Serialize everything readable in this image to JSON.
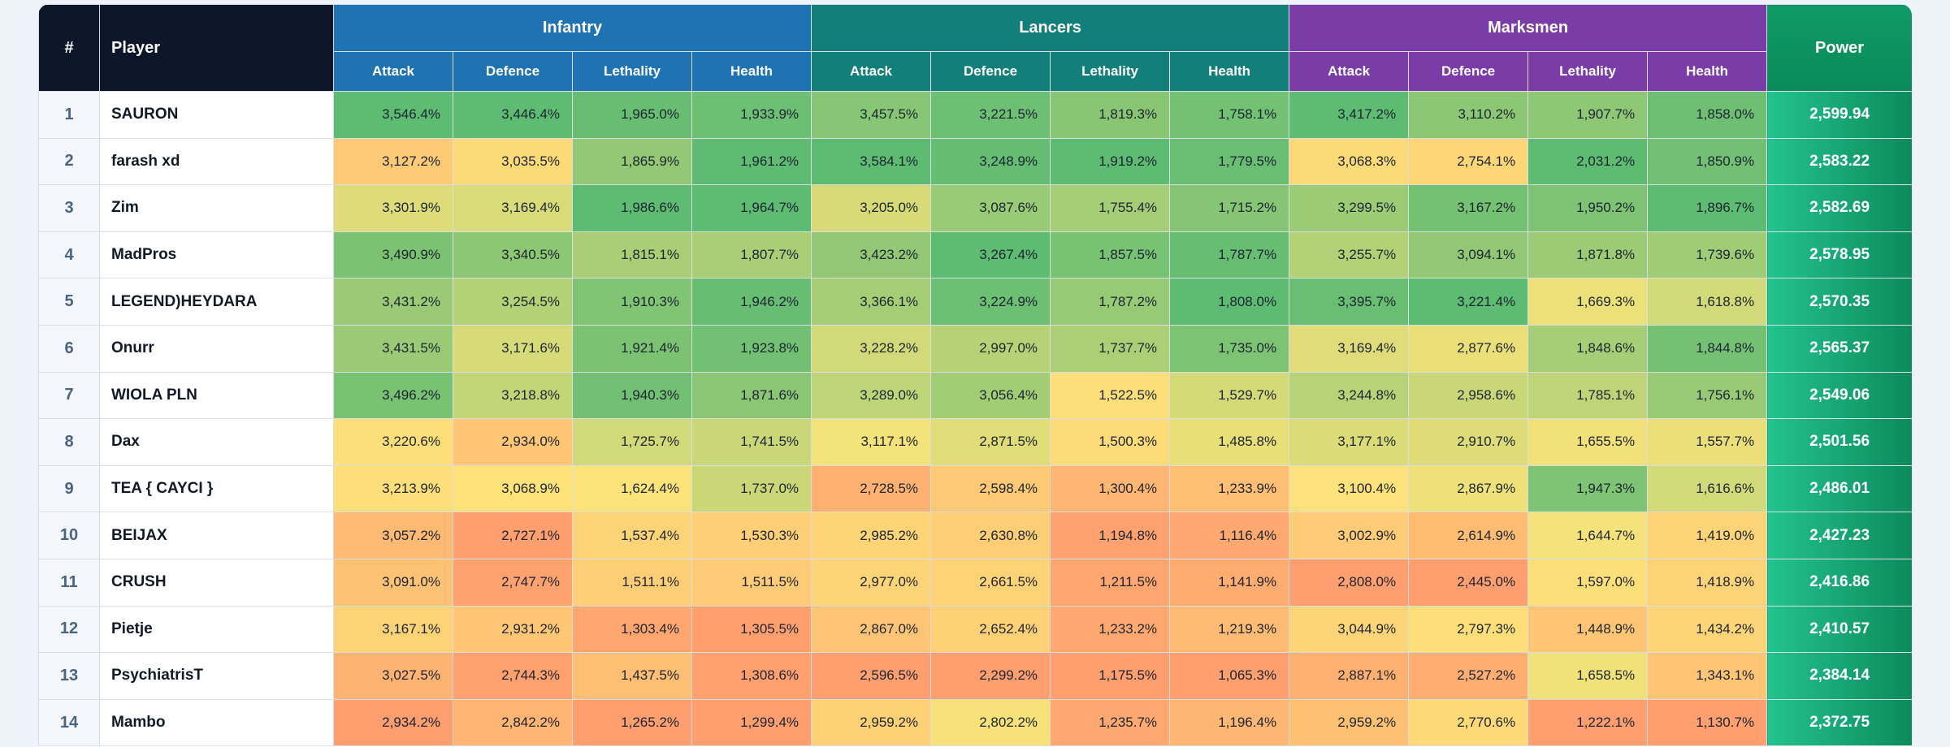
{
  "headers": {
    "rank": "#",
    "player": "Player",
    "power": "Power",
    "groups": {
      "infantry": "Infantry",
      "lancers": "Lancers",
      "marksmen": "Marksmen"
    },
    "stats": [
      "Attack",
      "Defence",
      "Lethality",
      "Health"
    ]
  },
  "colors": {
    "infantry_header": "#1f73b2",
    "lancers_header": "#127f7a",
    "marksmen_header": "#7a3da8",
    "corner_header": "#0e172a",
    "power_column": "#13a46f",
    "heat_low": "#ff9e6e",
    "heat_mid": "#fde47a",
    "heat_high": "#5ebb72"
  },
  "rows": [
    {
      "rank": "1",
      "player": "SAURON",
      "cells": [
        "3,546.4%",
        "3,446.4%",
        "1,965.0%",
        "1,933.9%",
        "3,457.5%",
        "3,221.5%",
        "1,819.3%",
        "1,758.1%",
        "3,417.2%",
        "3,110.2%",
        "1,907.7%",
        "1,858.0%"
      ],
      "power": "2,599.94"
    },
    {
      "rank": "2",
      "player": "farash xd",
      "cells": [
        "3,127.2%",
        "3,035.5%",
        "1,865.9%",
        "1,961.2%",
        "3,584.1%",
        "3,248.9%",
        "1,919.2%",
        "1,779.5%",
        "3,068.3%",
        "2,754.1%",
        "2,031.2%",
        "1,850.9%"
      ],
      "power": "2,583.22"
    },
    {
      "rank": "3",
      "player": "Zim",
      "cells": [
        "3,301.9%",
        "3,169.4%",
        "1,986.6%",
        "1,964.7%",
        "3,205.0%",
        "3,087.6%",
        "1,755.4%",
        "1,715.2%",
        "3,299.5%",
        "3,167.2%",
        "1,950.2%",
        "1,896.7%"
      ],
      "power": "2,582.69"
    },
    {
      "rank": "4",
      "player": "MadPros",
      "cells": [
        "3,490.9%",
        "3,340.5%",
        "1,815.1%",
        "1,807.7%",
        "3,423.2%",
        "3,267.4%",
        "1,857.5%",
        "1,787.7%",
        "3,255.7%",
        "3,094.1%",
        "1,871.8%",
        "1,739.6%"
      ],
      "power": "2,578.95"
    },
    {
      "rank": "5",
      "player": "LEGEND)HEYDARA",
      "cells": [
        "3,431.2%",
        "3,254.5%",
        "1,910.3%",
        "1,946.2%",
        "3,366.1%",
        "3,224.9%",
        "1,787.2%",
        "1,808.0%",
        "3,395.7%",
        "3,221.4%",
        "1,669.3%",
        "1,618.8%"
      ],
      "power": "2,570.35"
    },
    {
      "rank": "6",
      "player": "Onurr",
      "cells": [
        "3,431.5%",
        "3,171.6%",
        "1,921.4%",
        "1,923.8%",
        "3,228.2%",
        "2,997.0%",
        "1,737.7%",
        "1,735.0%",
        "3,169.4%",
        "2,877.6%",
        "1,848.6%",
        "1,844.8%"
      ],
      "power": "2,565.37"
    },
    {
      "rank": "7",
      "player": "WIOLA PLN",
      "cells": [
        "3,496.2%",
        "3,218.8%",
        "1,940.3%",
        "1,871.6%",
        "3,289.0%",
        "3,056.4%",
        "1,522.5%",
        "1,529.7%",
        "3,244.8%",
        "2,958.6%",
        "1,785.1%",
        "1,756.1%"
      ],
      "power": "2,549.06"
    },
    {
      "rank": "8",
      "player": "Dax",
      "cells": [
        "3,220.6%",
        "2,934.0%",
        "1,725.7%",
        "1,741.5%",
        "3,117.1%",
        "2,871.5%",
        "1,500.3%",
        "1,485.8%",
        "3,177.1%",
        "2,910.7%",
        "1,655.5%",
        "1,557.7%"
      ],
      "power": "2,501.56"
    },
    {
      "rank": "9",
      "player": "TEA { CAYCI }",
      "cells": [
        "3,213.9%",
        "3,068.9%",
        "1,624.4%",
        "1,737.0%",
        "2,728.5%",
        "2,598.4%",
        "1,300.4%",
        "1,233.9%",
        "3,100.4%",
        "2,867.9%",
        "1,947.3%",
        "1,616.6%"
      ],
      "power": "2,486.01"
    },
    {
      "rank": "10",
      "player": "BEIJAX",
      "cells": [
        "3,057.2%",
        "2,727.1%",
        "1,537.4%",
        "1,530.3%",
        "2,985.2%",
        "2,630.8%",
        "1,194.8%",
        "1,116.4%",
        "3,002.9%",
        "2,614.9%",
        "1,644.7%",
        "1,419.0%"
      ],
      "power": "2,427.23"
    },
    {
      "rank": "11",
      "player": "CRUSH",
      "cells": [
        "3,091.0%",
        "2,747.7%",
        "1,511.1%",
        "1,511.5%",
        "2,977.0%",
        "2,661.5%",
        "1,211.5%",
        "1,141.9%",
        "2,808.0%",
        "2,445.0%",
        "1,597.0%",
        "1,418.9%"
      ],
      "power": "2,416.86"
    },
    {
      "rank": "12",
      "player": "Pietje",
      "cells": [
        "3,167.1%",
        "2,931.2%",
        "1,303.4%",
        "1,305.5%",
        "2,867.0%",
        "2,652.4%",
        "1,233.2%",
        "1,219.3%",
        "3,044.9%",
        "2,797.3%",
        "1,448.9%",
        "1,434.2%"
      ],
      "power": "2,410.57"
    },
    {
      "rank": "13",
      "player": "PsychiatrisT",
      "cells": [
        "3,027.5%",
        "2,744.3%",
        "1,437.5%",
        "1,308.6%",
        "2,596.5%",
        "2,299.2%",
        "1,175.5%",
        "1,065.3%",
        "2,887.1%",
        "2,527.2%",
        "1,658.5%",
        "1,343.1%"
      ],
      "power": "2,384.14"
    },
    {
      "rank": "14",
      "player": "Mambo",
      "cells": [
        "2,934.2%",
        "2,842.2%",
        "1,265.2%",
        "1,299.4%",
        "2,959.2%",
        "2,802.2%",
        "1,235.7%",
        "1,196.4%",
        "2,959.2%",
        "2,770.6%",
        "1,222.1%",
        "1,130.7%"
      ],
      "power": "2,372.75"
    }
  ]
}
